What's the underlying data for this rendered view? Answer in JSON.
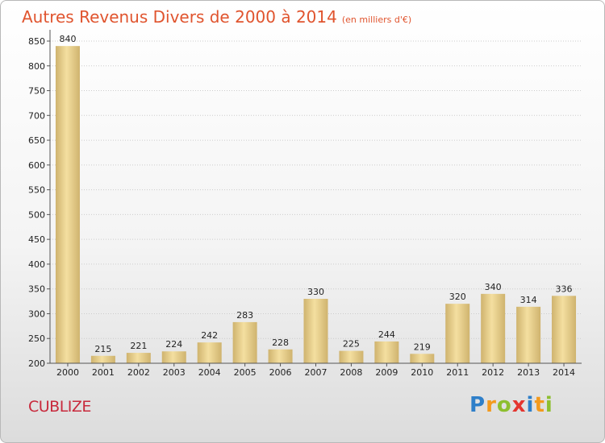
{
  "header": {
    "title": "Autres Revenus Divers de 2000 à 2014",
    "subtitle": "(en milliers d'€)"
  },
  "footer": {
    "city": "CUBLIZE",
    "logo_letters": [
      {
        "char": "P",
        "color": "#2e7fc9"
      },
      {
        "char": "r",
        "color": "#f39a1d"
      },
      {
        "char": "o",
        "color": "#8dbf2f"
      },
      {
        "char": "x",
        "color": "#e4352f"
      },
      {
        "char": "i",
        "color": "#2e7fc9"
      },
      {
        "char": "t",
        "color": "#f39a1d"
      },
      {
        "char": "i",
        "color": "#8dbf2f"
      }
    ]
  },
  "chart_data": {
    "type": "bar",
    "title": "Autres Revenus Divers de 2000 à 2014",
    "subtitle": "(en milliers d'€)",
    "categories": [
      "2000",
      "2001",
      "2002",
      "2003",
      "2004",
      "2005",
      "2006",
      "2007",
      "2008",
      "2009",
      "2010",
      "2011",
      "2012",
      "2013",
      "2014"
    ],
    "values": [
      840,
      215,
      221,
      224,
      242,
      283,
      228,
      330,
      225,
      244,
      219,
      320,
      340,
      314,
      336
    ],
    "ylim": [
      200,
      850
    ],
    "yticks": [
      200,
      250,
      300,
      350,
      400,
      450,
      500,
      550,
      600,
      650,
      700,
      750,
      800,
      850
    ],
    "grid": true,
    "colors": {
      "bar_light": "#f4dfa0",
      "bar_dark": "#cfb36e",
      "grid": "#cccccc"
    }
  }
}
